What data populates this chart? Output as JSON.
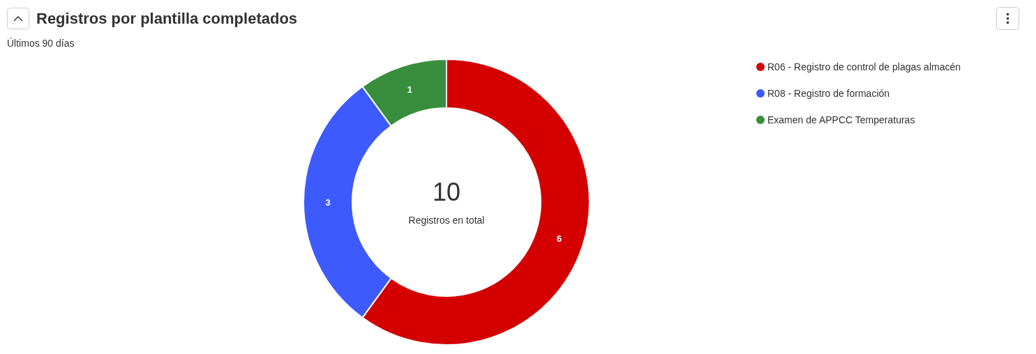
{
  "chart_data": {
    "type": "donut",
    "title": "Registros por plantilla completados",
    "subtitle": "Últimos 90 días",
    "categories": [
      "R06 - Registro de control de plagas almacén",
      "R08 - Registro de formación",
      "Examen de APPCC Temperaturas"
    ],
    "values": [
      6,
      3,
      1
    ],
    "colors": [
      "#d40000",
      "#3d5afe",
      "#388e3c"
    ],
    "data_labels": true,
    "legend": "top right",
    "annotations": [
      "10",
      "Registros en total"
    ]
  }
}
